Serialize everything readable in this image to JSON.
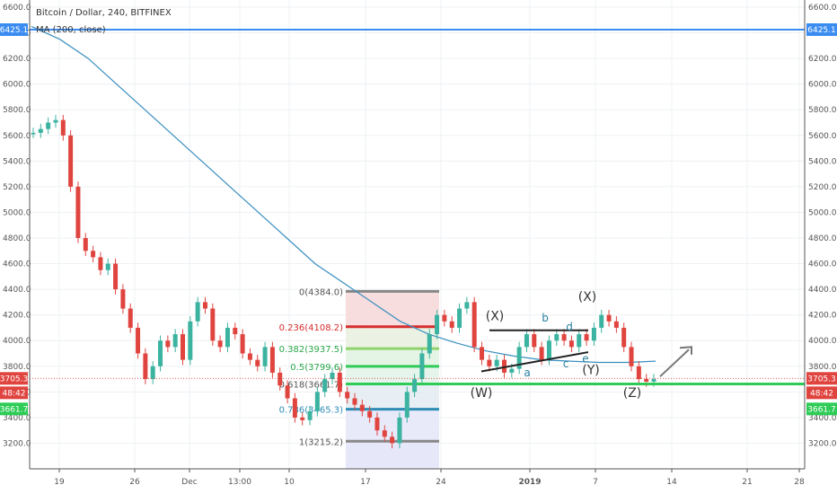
{
  "title": "Bitcoin / Dollar, 240, BITFINEX",
  "indicator": "MA (200, close)",
  "colors": {
    "up": "#3bb3a0",
    "down": "#e0443f",
    "ma": "#3a8fc0",
    "fibGreen": "#2ecc57",
    "fibRed": "#d62d2d",
    "fibGrey": "#888888",
    "fibBlue": "#2f8db5",
    "priceTag": "#e0443f",
    "hline": "#3a8cf0"
  },
  "chart_data": {
    "type": "line",
    "ylim": [
      3000,
      6600
    ],
    "yticks": [
      3200,
      3400,
      3600,
      3800,
      4000,
      4200,
      4400,
      4600,
      4800,
      5000,
      5200,
      5400,
      5600,
      5800,
      6000,
      6200,
      6400,
      6600
    ],
    "xticks": [
      "19",
      "26",
      "Dec",
      "13:00",
      "10",
      "17",
      "24",
      "2019",
      "7",
      "14",
      "21",
      "28"
    ],
    "price_series": [
      5620,
      5650,
      5700,
      5720,
      5600,
      5200,
      4800,
      4700,
      4650,
      4550,
      4600,
      4400,
      4250,
      4100,
      3900,
      3700,
      3800,
      4000,
      3950,
      4050,
      3850,
      4150,
      4300,
      4250,
      4000,
      3950,
      4100,
      4050,
      3900,
      3850,
      3800,
      3950,
      3750,
      3650,
      3550,
      3400,
      3380,
      3450,
      3600,
      3700,
      3750,
      3600,
      3550,
      3500,
      3450,
      3400,
      3300,
      3250,
      3200,
      3400,
      3600,
      3700,
      3900,
      4050,
      4200,
      4150,
      4100,
      4250,
      4300,
      3950,
      3850,
      3800,
      3850,
      3750,
      3780,
      3950,
      4050,
      3950,
      3850,
      4000,
      4050,
      4000,
      3950,
      4050,
      4000,
      4100,
      4200,
      4150,
      4100,
      3950,
      3800,
      3700,
      3680,
      3700
    ],
    "ma_series": [
      6450,
      6350,
      6200,
      6000,
      5800,
      5600,
      5400,
      5200,
      5000,
      4800,
      4600,
      4450,
      4300,
      4150,
      4050,
      3980,
      3920,
      3880,
      3850,
      3840,
      3830,
      3830,
      3840
    ],
    "fibonacci": [
      {
        "label": "0(4384.0)",
        "value": 4384.0
      },
      {
        "label": "0.236(4108.2)",
        "value": 4108.2
      },
      {
        "label": "0.382(3937.5)",
        "value": 3937.5
      },
      {
        "label": "0.5(3799.6)",
        "value": 3799.6
      },
      {
        "label": "0.618(3661.7)",
        "value": 3661.7
      },
      {
        "label": "0.786(3465.3)",
        "value": 3465.3
      },
      {
        "label": "1(3215.2)",
        "value": 3215.2
      }
    ],
    "wave_labels": [
      "(W)",
      "(X)",
      "(Y)",
      "(Z)",
      "(X)",
      "a",
      "b",
      "c",
      "d",
      "e"
    ],
    "price_tags": [
      {
        "text": "6425.1",
        "value": 6425.1
      },
      {
        "text": "3705.3",
        "value": 3705.3
      },
      {
        "text": "48:42",
        "value": 3630
      },
      {
        "text": "3661.7",
        "value": 3661.7
      }
    ],
    "horizontal_lines": [
      6425.1,
      3661.7
    ]
  }
}
